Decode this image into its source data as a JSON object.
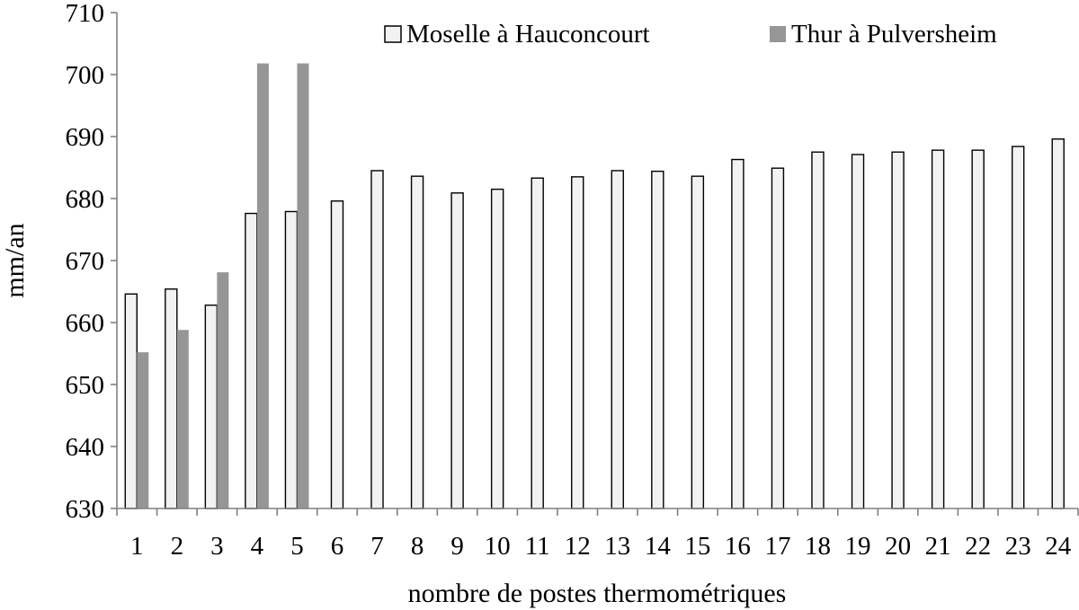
{
  "chart_data": {
    "type": "bar",
    "title": "",
    "xlabel": "nombre de postes thermométriques",
    "ylabel": "mm/an",
    "ylim": [
      630,
      710
    ],
    "yticks": [
      630,
      640,
      650,
      660,
      670,
      680,
      690,
      700,
      710
    ],
    "grid": false,
    "legend_position": "top-right",
    "categories": [
      "1",
      "2",
      "3",
      "4",
      "5",
      "6",
      "7",
      "8",
      "9",
      "10",
      "11",
      "12",
      "13",
      "14",
      "15",
      "16",
      "17",
      "18",
      "19",
      "20",
      "21",
      "22",
      "23",
      "24"
    ],
    "series": [
      {
        "name": "Moselle à Hauconcourt",
        "color": "#f2f2f2",
        "values": [
          664.6,
          665.4,
          662.8,
          677.6,
          677.9,
          679.6,
          684.5,
          683.6,
          680.9,
          681.5,
          683.3,
          683.5,
          684.5,
          684.4,
          683.6,
          686.3,
          684.9,
          687.5,
          687.1,
          687.5,
          687.8,
          687.8,
          688.4,
          689.6
        ]
      },
      {
        "name": "Thur à Pulversheim",
        "color": "#969696",
        "values": [
          655.2,
          658.8,
          668.1,
          701.8,
          701.8,
          null,
          null,
          null,
          null,
          null,
          null,
          null,
          null,
          null,
          null,
          null,
          null,
          null,
          null,
          null,
          null,
          null,
          null,
          null
        ]
      }
    ]
  }
}
